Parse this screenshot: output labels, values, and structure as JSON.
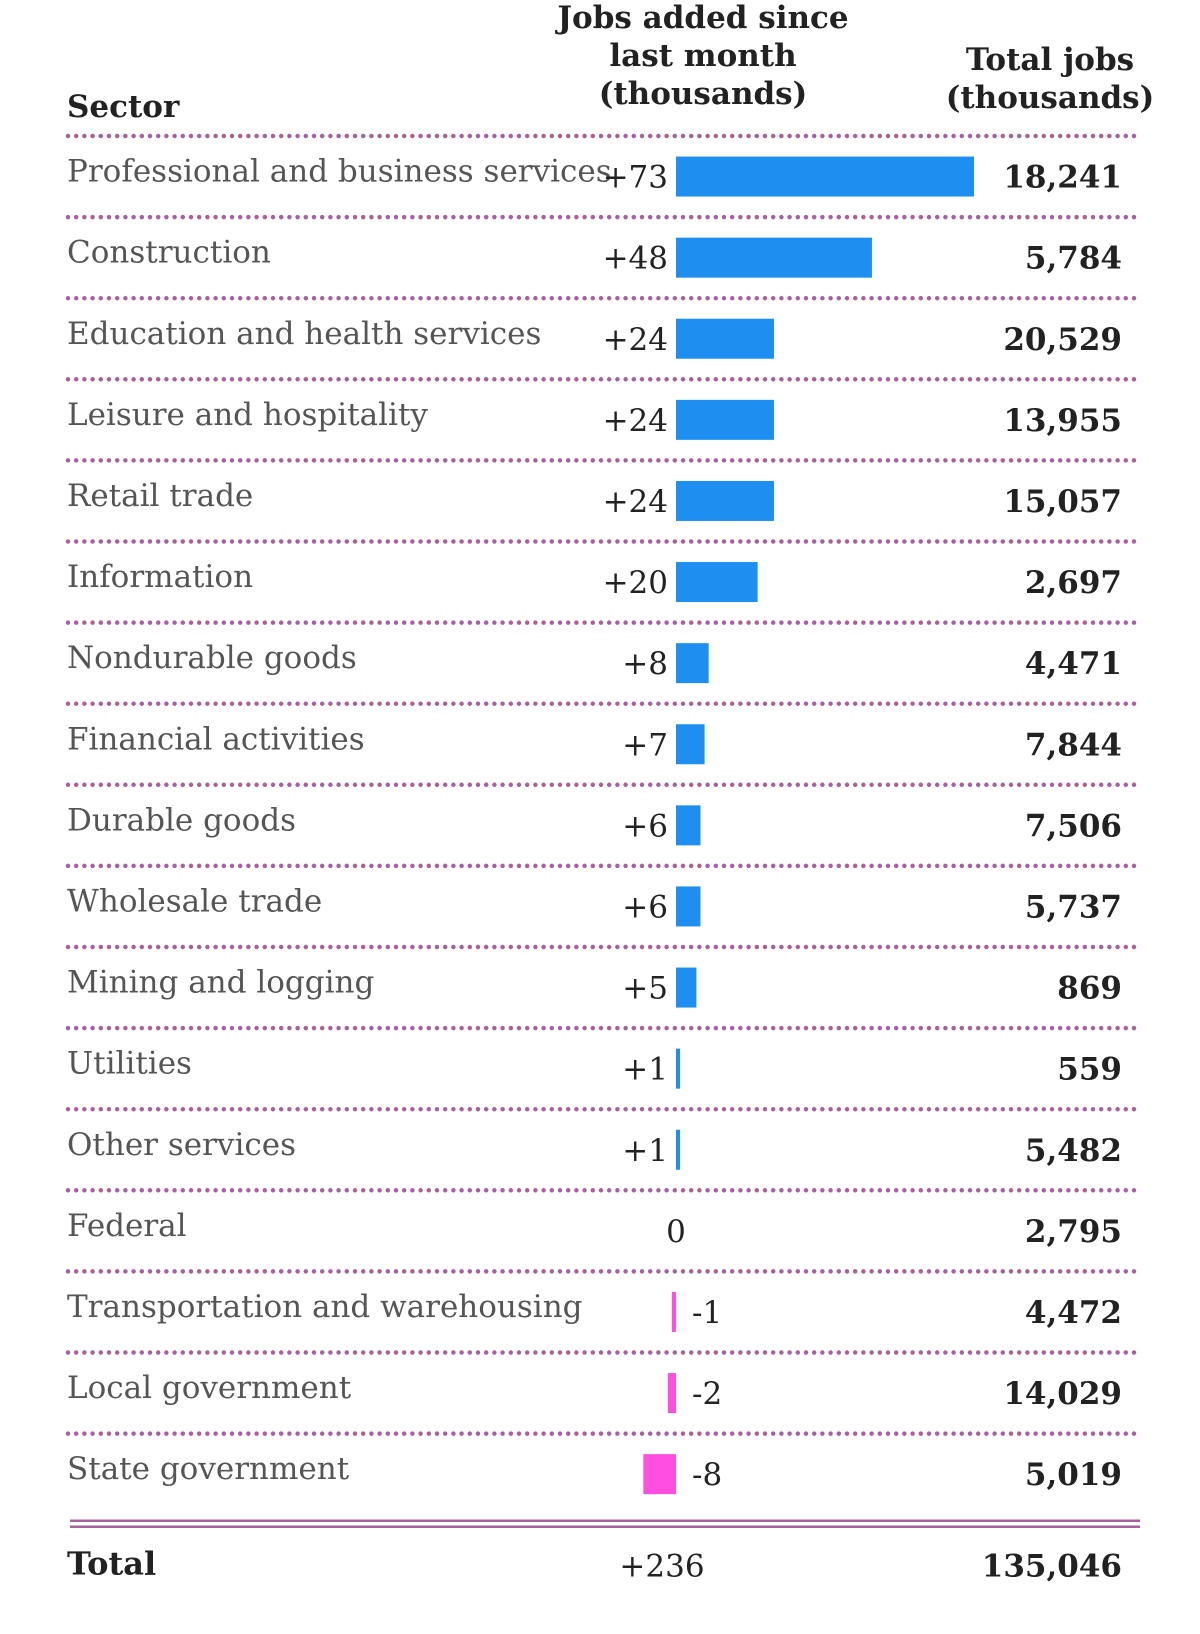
{
  "headers": {
    "sector": "Sector",
    "jobs_added": [
      "Jobs added since",
      "last month",
      "(thousands)"
    ],
    "total_jobs": [
      "Total jobs",
      "(thousands)"
    ]
  },
  "colors": {
    "positive": "#1e8ff0",
    "negative": "#ff4fe0",
    "divider": "#a8619f",
    "label": "#555555",
    "value": "#222222"
  },
  "chart_data": {
    "type": "table",
    "columns": [
      "Sector",
      "Jobs added since last month (thousands)",
      "Total jobs (thousands)"
    ],
    "rows": [
      {
        "sector": "Professional and business services",
        "change": 73,
        "change_label": "+73",
        "total": "18,241"
      },
      {
        "sector": "Construction",
        "change": 48,
        "change_label": "+48",
        "total": "5,784"
      },
      {
        "sector": "Education and health services",
        "change": 24,
        "change_label": "+24",
        "total": "20,529"
      },
      {
        "sector": "Leisure and hospitality",
        "change": 24,
        "change_label": "+24",
        "total": "13,955"
      },
      {
        "sector": "Retail trade",
        "change": 24,
        "change_label": "+24",
        "total": "15,057"
      },
      {
        "sector": "Information",
        "change": 20,
        "change_label": "+20",
        "total": "2,697"
      },
      {
        "sector": "Nondurable goods",
        "change": 8,
        "change_label": "+8",
        "total": "4,471"
      },
      {
        "sector": "Financial activities",
        "change": 7,
        "change_label": "+7",
        "total": "7,844"
      },
      {
        "sector": "Durable goods",
        "change": 6,
        "change_label": "+6",
        "total": "7,506"
      },
      {
        "sector": "Wholesale trade",
        "change": 6,
        "change_label": "+6",
        "total": "5,737"
      },
      {
        "sector": "Mining and logging",
        "change": 5,
        "change_label": "+5",
        "total": "869"
      },
      {
        "sector": "Utilities",
        "change": 1,
        "change_label": "+1",
        "total": "559"
      },
      {
        "sector": "Other services",
        "change": 1,
        "change_label": "+1",
        "total": "5,482"
      },
      {
        "sector": "Federal",
        "change": 0,
        "change_label": "0",
        "total": "2,795"
      },
      {
        "sector": "Transportation and warehousing",
        "change": -1,
        "change_label": "-1",
        "total": "4,472"
      },
      {
        "sector": "Local government",
        "change": -2,
        "change_label": "-2",
        "total": "14,029"
      },
      {
        "sector": "State government",
        "change": -8,
        "change_label": "-8",
        "total": "5,019"
      }
    ],
    "total": {
      "label": "Total",
      "change_label": "+236",
      "total": "135,046"
    }
  }
}
